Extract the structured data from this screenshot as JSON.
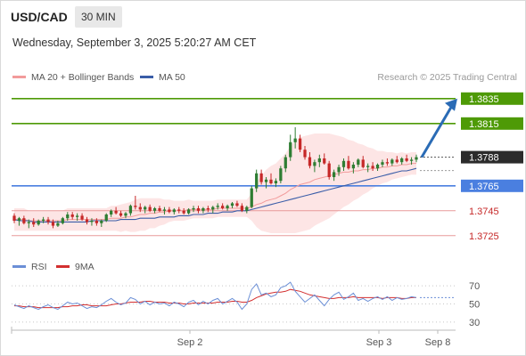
{
  "header": {
    "symbol": "USD/CAD",
    "timeframe": "30 MIN",
    "datetime": "Wednesday, September 3, 2025 5:20:27 AM CET",
    "credit": "Research © 2025 Trading Central"
  },
  "legend": {
    "ma20_label": "MA 20 + Bollinger Bands",
    "ma50_label": "MA 50",
    "rsi_label": "RSI",
    "ma9_label": "9MA"
  },
  "colors": {
    "bull": "#2e7d32",
    "bear": "#c62828",
    "ma20": "#f29b9b",
    "ma50": "#3a5da8",
    "bollinger_fill": "#fde0e0",
    "target_line": "#4e9a06",
    "pivot_line": "#4a7fe0",
    "support_line": "#e89a9a",
    "arrow": "#2a6bb5",
    "rsi": "#6b8fd6",
    "rsi_ma": "#d32f2f"
  },
  "chart_data": [
    {
      "type": "candlestick",
      "title": "USD/CAD",
      "timeframe": "30 MIN",
      "x_labels": [
        "Sep 2",
        "Sep 3",
        "Sep 8"
      ],
      "ylim": [
        1.3712,
        1.3842
      ],
      "last_price": 1.3788,
      "levels": [
        {
          "value": 1.3835,
          "label": "1.3835",
          "kind": "resistance-target",
          "badge": true
        },
        {
          "value": 1.3815,
          "label": "1.3815",
          "kind": "resistance-target",
          "badge": true
        },
        {
          "value": 1.3788,
          "label": "1.3788",
          "kind": "last-price",
          "badge": true
        },
        {
          "value": 1.3765,
          "label": "1.3765",
          "kind": "pivot",
          "badge": true
        },
        {
          "value": 1.3745,
          "label": "1.3745",
          "kind": "support",
          "badge": false
        },
        {
          "value": 1.3725,
          "label": "1.3725",
          "kind": "support",
          "badge": false
        }
      ],
      "arrow": {
        "from": 1.3788,
        "to": 1.3835,
        "direction": "up"
      },
      "candles_ohlc": [
        [
          1.3741,
          1.3743,
          1.3735,
          1.3737
        ],
        [
          1.3737,
          1.374,
          1.3733,
          1.3739
        ],
        [
          1.3739,
          1.3741,
          1.3734,
          1.3735
        ],
        [
          1.3735,
          1.3738,
          1.3731,
          1.3736
        ],
        [
          1.3736,
          1.3739,
          1.3732,
          1.3734
        ],
        [
          1.3734,
          1.3738,
          1.3733,
          1.3737
        ],
        [
          1.3737,
          1.374,
          1.3735,
          1.3738
        ],
        [
          1.3738,
          1.374,
          1.3734,
          1.3736
        ],
        [
          1.3736,
          1.3738,
          1.3731,
          1.3733
        ],
        [
          1.3733,
          1.3737,
          1.3732,
          1.3735
        ],
        [
          1.3735,
          1.374,
          1.3734,
          1.3739
        ],
        [
          1.3739,
          1.3744,
          1.3737,
          1.3742
        ],
        [
          1.3742,
          1.3744,
          1.3738,
          1.374
        ],
        [
          1.374,
          1.3743,
          1.3737,
          1.3741
        ],
        [
          1.3741,
          1.3743,
          1.3737,
          1.3738
        ],
        [
          1.3738,
          1.374,
          1.3734,
          1.3736
        ],
        [
          1.3736,
          1.3739,
          1.3733,
          1.3737
        ],
        [
          1.3737,
          1.3739,
          1.3733,
          1.3735
        ],
        [
          1.3735,
          1.3738,
          1.3732,
          1.3737
        ],
        [
          1.3737,
          1.3743,
          1.3736,
          1.3742
        ],
        [
          1.3742,
          1.3746,
          1.374,
          1.3745
        ],
        [
          1.3745,
          1.3748,
          1.3742,
          1.3743
        ],
        [
          1.3743,
          1.3745,
          1.374,
          1.3741
        ],
        [
          1.3741,
          1.3744,
          1.3739,
          1.3743
        ],
        [
          1.3743,
          1.375,
          1.3741,
          1.3749
        ],
        [
          1.3749,
          1.3757,
          1.3746,
          1.3748
        ],
        [
          1.3748,
          1.3751,
          1.3744,
          1.3746
        ],
        [
          1.3746,
          1.3749,
          1.3743,
          1.3748
        ],
        [
          1.3748,
          1.375,
          1.3744,
          1.3745
        ],
        [
          1.3745,
          1.3748,
          1.3743,
          1.3747
        ],
        [
          1.3747,
          1.3749,
          1.3744,
          1.3745
        ],
        [
          1.3745,
          1.3748,
          1.3742,
          1.3746
        ],
        [
          1.3746,
          1.3748,
          1.3743,
          1.3744
        ],
        [
          1.3744,
          1.3747,
          1.3742,
          1.3746
        ],
        [
          1.3746,
          1.3748,
          1.3743,
          1.3745
        ],
        [
          1.3745,
          1.3747,
          1.3742,
          1.3743
        ],
        [
          1.3743,
          1.3747,
          1.3742,
          1.3746
        ],
        [
          1.3746,
          1.3749,
          1.3744,
          1.3747
        ],
        [
          1.3747,
          1.3749,
          1.3743,
          1.3745
        ],
        [
          1.3745,
          1.3748,
          1.3743,
          1.3747
        ],
        [
          1.3747,
          1.3749,
          1.3744,
          1.3746
        ],
        [
          1.3746,
          1.3749,
          1.3743,
          1.3748
        ],
        [
          1.3748,
          1.3751,
          1.3746,
          1.3749
        ],
        [
          1.3749,
          1.3751,
          1.3746,
          1.3747
        ],
        [
          1.3747,
          1.375,
          1.3745,
          1.3749
        ],
        [
          1.3749,
          1.3752,
          1.3747,
          1.3751
        ],
        [
          1.3751,
          1.3753,
          1.3748,
          1.3749
        ],
        [
          1.3749,
          1.3751,
          1.3744,
          1.3745
        ],
        [
          1.3745,
          1.3749,
          1.3743,
          1.3748
        ],
        [
          1.3748,
          1.3765,
          1.3747,
          1.3763
        ],
        [
          1.3763,
          1.3778,
          1.376,
          1.3775
        ],
        [
          1.3775,
          1.3778,
          1.3766,
          1.3768
        ],
        [
          1.3768,
          1.3772,
          1.3763,
          1.377
        ],
        [
          1.377,
          1.3775,
          1.3766,
          1.3767
        ],
        [
          1.3767,
          1.3771,
          1.3764,
          1.3769
        ],
        [
          1.3769,
          1.3781,
          1.3767,
          1.3779
        ],
        [
          1.3779,
          1.379,
          1.3776,
          1.3788
        ],
        [
          1.3788,
          1.3806,
          1.3785,
          1.38
        ],
        [
          1.38,
          1.3812,
          1.3795,
          1.3803
        ],
        [
          1.3803,
          1.3806,
          1.3792,
          1.3794
        ],
        [
          1.3794,
          1.3797,
          1.3786,
          1.3788
        ],
        [
          1.3788,
          1.3792,
          1.3779,
          1.3781
        ],
        [
          1.3781,
          1.3786,
          1.3776,
          1.3784
        ],
        [
          1.3784,
          1.379,
          1.378,
          1.3787
        ],
        [
          1.3787,
          1.3791,
          1.3782,
          1.3783
        ],
        [
          1.3783,
          1.3785,
          1.377,
          1.3772
        ],
        [
          1.3772,
          1.3778,
          1.3769,
          1.3776
        ],
        [
          1.3776,
          1.3782,
          1.3773,
          1.378
        ],
        [
          1.378,
          1.3787,
          1.3777,
          1.3785
        ],
        [
          1.3785,
          1.3789,
          1.3778,
          1.3779
        ],
        [
          1.3779,
          1.3784,
          1.3775,
          1.3782
        ],
        [
          1.3782,
          1.3787,
          1.378,
          1.3786
        ],
        [
          1.3786,
          1.3789,
          1.3779,
          1.378
        ],
        [
          1.378,
          1.3783,
          1.3776,
          1.3781
        ],
        [
          1.3781,
          1.3784,
          1.3777,
          1.3779
        ],
        [
          1.3779,
          1.3783,
          1.3777,
          1.3782
        ],
        [
          1.3782,
          1.3786,
          1.378,
          1.3784
        ],
        [
          1.3784,
          1.3787,
          1.3781,
          1.3783
        ],
        [
          1.3783,
          1.3787,
          1.3781,
          1.3786
        ],
        [
          1.3786,
          1.3789,
          1.3783,
          1.3784
        ],
        [
          1.3784,
          1.3788,
          1.3782,
          1.3787
        ],
        [
          1.3787,
          1.379,
          1.3784,
          1.3785
        ],
        [
          1.3785,
          1.3788,
          1.3782,
          1.3786
        ],
        [
          1.3786,
          1.379,
          1.3784,
          1.3788
        ]
      ],
      "ma20": [
        1.3738,
        1.3738,
        1.3738,
        1.3737,
        1.3737,
        1.3737,
        1.3737,
        1.3737,
        1.3737,
        1.3737,
        1.3737,
        1.3738,
        1.3738,
        1.3738,
        1.3738,
        1.3738,
        1.3738,
        1.3738,
        1.3738,
        1.3738,
        1.3739,
        1.3739,
        1.3739,
        1.374,
        1.374,
        1.3741,
        1.3742,
        1.3742,
        1.3743,
        1.3743,
        1.3744,
        1.3744,
        1.3745,
        1.3745,
        1.3745,
        1.3745,
        1.3746,
        1.3746,
        1.3746,
        1.3746,
        1.3746,
        1.3746,
        1.3747,
        1.3747,
        1.3747,
        1.3747,
        1.3747,
        1.3747,
        1.3747,
        1.3748,
        1.375,
        1.3751,
        1.3753,
        1.3754,
        1.3755,
        1.3757,
        1.3759,
        1.3762,
        1.3764,
        1.3766,
        1.3767,
        1.3768,
        1.377,
        1.3771,
        1.3772,
        1.3773,
        1.3774,
        1.3775,
        1.3776,
        1.3776,
        1.3777,
        1.3777,
        1.3778,
        1.3778,
        1.3779,
        1.3779,
        1.378,
        1.378,
        1.3781,
        1.3781,
        1.3782,
        1.3782,
        1.3783,
        1.3783
      ],
      "ma50": [
        1.3738,
        1.3737,
        1.3737,
        1.3737,
        1.3736,
        1.3736,
        1.3736,
        1.3736,
        1.3736,
        1.3736,
        1.3736,
        1.3736,
        1.3736,
        1.3736,
        1.3736,
        1.3736,
        1.3737,
        1.3737,
        1.3737,
        1.3737,
        1.3737,
        1.3737,
        1.3738,
        1.3738,
        1.3738,
        1.3738,
        1.3739,
        1.3739,
        1.3739,
        1.3739,
        1.374,
        1.374,
        1.374,
        1.374,
        1.3741,
        1.3741,
        1.3741,
        1.3742,
        1.3742,
        1.3742,
        1.3743,
        1.3743,
        1.3743,
        1.3744,
        1.3744,
        1.3744,
        1.3745,
        1.3745,
        1.3745,
        1.3746,
        1.3747,
        1.3748,
        1.3749,
        1.375,
        1.3751,
        1.3752,
        1.3753,
        1.3754,
        1.3755,
        1.3756,
        1.3757,
        1.3758,
        1.3759,
        1.376,
        1.3761,
        1.3762,
        1.3763,
        1.3764,
        1.3765,
        1.3766,
        1.3767,
        1.3768,
        1.3769,
        1.377,
        1.3771,
        1.3772,
        1.3773,
        1.3774,
        1.3775,
        1.3776,
        1.3777,
        1.3777,
        1.3778,
        1.3779
      ],
      "bollinger_width": [
        0.0009,
        0.0009,
        0.0009,
        0.0008,
        0.0008,
        0.0008,
        0.0008,
        0.0008,
        0.0008,
        0.0008,
        0.0008,
        0.0009,
        0.0009,
        0.0009,
        0.0009,
        0.0009,
        0.0009,
        0.0009,
        0.0009,
        0.0009,
        0.001,
        0.001,
        0.0011,
        0.0011,
        0.0012,
        0.0013,
        0.0013,
        0.0013,
        0.0012,
        0.0012,
        0.0011,
        0.001,
        0.0009,
        0.0008,
        0.0008,
        0.0008,
        0.0008,
        0.0007,
        0.0007,
        0.0007,
        0.0007,
        0.0007,
        0.0007,
        0.0007,
        0.0007,
        0.0007,
        0.0007,
        0.0007,
        0.0007,
        0.0011,
        0.0018,
        0.0022,
        0.0025,
        0.0027,
        0.0028,
        0.003,
        0.0032,
        0.0035,
        0.0037,
        0.0038,
        0.0038,
        0.0038,
        0.0037,
        0.0036,
        0.0035,
        0.0034,
        0.0032,
        0.003,
        0.0028,
        0.0026,
        0.0024,
        0.0022,
        0.002,
        0.0018,
        0.0016,
        0.0014,
        0.0013,
        0.0012,
        0.0011,
        0.001,
        0.001,
        0.0009,
        0.0009,
        0.0009
      ]
    },
    {
      "type": "line",
      "title": "RSI",
      "y_ticks": [
        70,
        50,
        30
      ],
      "ylim": [
        25,
        78
      ],
      "series": [
        {
          "name": "RSI",
          "values": [
            49,
            47,
            45,
            48,
            46,
            44,
            47,
            49,
            46,
            44,
            48,
            52,
            50,
            51,
            48,
            45,
            47,
            46,
            49,
            53,
            56,
            52,
            49,
            51,
            57,
            55,
            50,
            53,
            49,
            52,
            50,
            51,
            48,
            52,
            50,
            47,
            52,
            54,
            49,
            53,
            50,
            54,
            56,
            50,
            53,
            56,
            52,
            44,
            50,
            66,
            72,
            60,
            62,
            58,
            60,
            68,
            70,
            74,
            64,
            58,
            52,
            56,
            60,
            54,
            48,
            55,
            60,
            63,
            55,
            58,
            62,
            54,
            56,
            53,
            56,
            58,
            55,
            58,
            54,
            57,
            55,
            56,
            58,
            57
          ]
        },
        {
          "name": "9MA",
          "values": [
            48,
            48,
            47,
            47,
            47,
            46,
            46,
            46,
            46,
            46,
            47,
            47,
            48,
            48,
            49,
            49,
            48,
            48,
            48,
            48,
            49,
            50,
            50,
            51,
            52,
            52,
            52,
            53,
            53,
            52,
            52,
            52,
            51,
            51,
            51,
            50,
            50,
            51,
            51,
            51,
            51,
            51,
            52,
            52,
            52,
            53,
            53,
            52,
            52,
            54,
            57,
            59,
            61,
            62,
            63,
            63,
            64,
            66,
            65,
            64,
            62,
            60,
            59,
            58,
            57,
            56,
            56,
            57,
            57,
            57,
            58,
            57,
            57,
            57,
            57,
            57,
            56,
            57,
            57,
            57,
            56,
            56,
            57,
            57
          ]
        }
      ]
    }
  ]
}
